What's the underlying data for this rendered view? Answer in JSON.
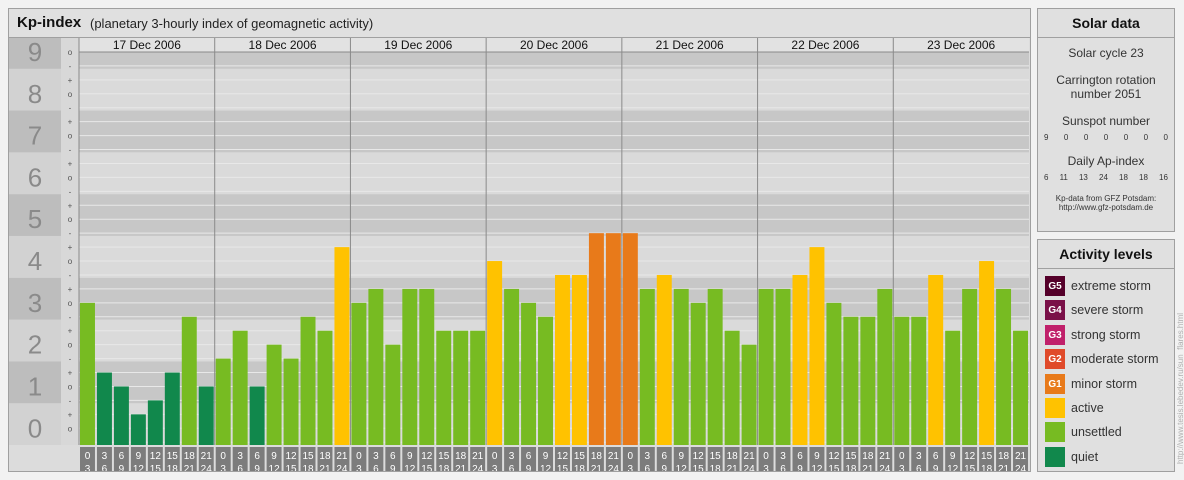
{
  "header": {
    "title": "Kp-index",
    "subtitle": "(planetary 3-hourly index of geomagnetic activity)"
  },
  "colors": {
    "quiet": "#11884c",
    "unsettled": "#77bb22",
    "active": "#ffc200",
    "minor_storm": "#e87a1a",
    "moderate_storm": "#e04a2a",
    "strong_storm": "#c0206a",
    "severe_storm": "#7a1048",
    "extreme_storm": "#55002a"
  },
  "chart_data": {
    "type": "bar",
    "title": "Kp-index",
    "ylim": [
      0,
      9
    ],
    "y_ticks": [
      "0",
      "1",
      "2",
      "3",
      "4",
      "5",
      "6",
      "7",
      "8",
      "9"
    ],
    "minor_tick_labels": [
      "o",
      "+",
      "-",
      "o",
      "+",
      "-",
      "o",
      "+",
      "-",
      "o",
      "+",
      "-",
      "o",
      "+",
      "-",
      "o",
      "+",
      "-",
      "o",
      "+",
      "-",
      "o",
      "+",
      "-",
      "o",
      "+",
      "-",
      "o"
    ],
    "x_time_labels_top": [
      "0",
      "3",
      "6",
      "9",
      "12",
      "15",
      "18",
      "21"
    ],
    "x_time_labels_bottom": [
      "3",
      "6",
      "9",
      "12",
      "15",
      "18",
      "21",
      "24"
    ],
    "days": [
      {
        "date": "17 Dec 2006",
        "values": [
          3.0,
          1.333,
          1.0,
          0.333,
          0.667,
          1.333,
          2.667,
          1.0
        ]
      },
      {
        "date": "18 Dec 2006",
        "values": [
          1.667,
          2.333,
          1.0,
          2.0,
          1.667,
          2.667,
          2.333,
          4.333
        ]
      },
      {
        "date": "19 Dec 2006",
        "values": [
          3.0,
          3.333,
          2.0,
          3.333,
          3.333,
          2.333,
          2.333,
          2.333
        ]
      },
      {
        "date": "20 Dec 2006",
        "values": [
          4.0,
          3.333,
          3.0,
          2.667,
          3.667,
          3.667,
          4.667,
          4.667
        ]
      },
      {
        "date": "21 Dec 2006",
        "values": [
          4.667,
          3.333,
          3.667,
          3.333,
          3.0,
          3.333,
          2.333,
          2.0
        ]
      },
      {
        "date": "22 Dec 2006",
        "values": [
          3.333,
          3.333,
          3.667,
          4.333,
          3.0,
          2.667,
          2.667,
          3.333
        ]
      },
      {
        "date": "23 Dec 2006",
        "values": [
          2.667,
          2.667,
          3.667,
          2.333,
          3.333,
          4.0,
          3.333,
          2.333
        ]
      }
    ],
    "levels": [
      {
        "code": "G5",
        "label": "extreme storm",
        "color": "#55002a"
      },
      {
        "code": "G4",
        "label": "severe storm",
        "color": "#7a1048"
      },
      {
        "code": "G3",
        "label": "strong storm",
        "color": "#c0206a"
      },
      {
        "code": "G2",
        "label": "moderate storm",
        "color": "#e04a2a"
      },
      {
        "code": "G1",
        "label": "minor storm",
        "color": "#e87a1a"
      },
      {
        "code": "",
        "label": "active",
        "color": "#ffc200"
      },
      {
        "code": "",
        "label": "unsettled",
        "color": "#77bb22"
      },
      {
        "code": "",
        "label": "quiet",
        "color": "#11884c"
      }
    ]
  },
  "solar": {
    "title": "Solar data",
    "cycle": "Solar cycle 23",
    "rotation_line1": "Carrington rotation",
    "rotation_line2": "number 2051",
    "sunspot_title": "Sunspot number",
    "sunspot_values": [
      "9",
      "0",
      "0",
      "0",
      "0",
      "0",
      "0"
    ],
    "ap_title": "Daily Ap-index",
    "ap_values": [
      "6",
      "11",
      "13",
      "24",
      "18",
      "18",
      "16"
    ],
    "source_line1": "Kp-data from GFZ Potsdam:",
    "source_line2": "http://www.gfz-potsdam.de"
  },
  "levels_panel": {
    "title": "Activity levels"
  },
  "watermark": "http://www.tesis.lebedev.ru/sun_flares.html"
}
